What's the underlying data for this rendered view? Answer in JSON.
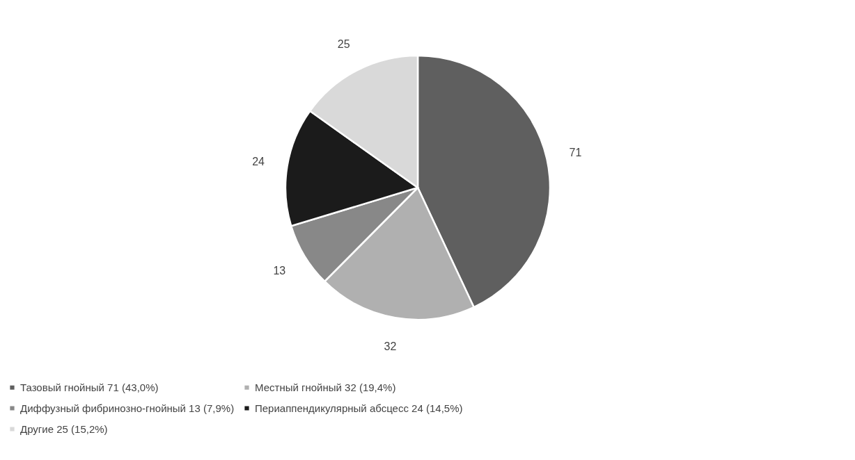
{
  "chart_data": {
    "type": "pie",
    "categories": [
      "Тазовый гнойный 71 (43,0%)",
      "Местный гнойный 32 (19,4%)",
      "Диффузный фибринозно-гнойный 13 (7,9%)",
      "Периаппендикулярный абсцесс 24 (14,5%)",
      "Другие 25 (15,2%)"
    ],
    "values": [
      71,
      32,
      13,
      24,
      25
    ],
    "colors": [
      "#5f5f5f",
      "#b0b0b0",
      "#888888",
      "#1b1b1b",
      "#d9d9d9"
    ],
    "data_labels": true,
    "legend": "bottom"
  }
}
